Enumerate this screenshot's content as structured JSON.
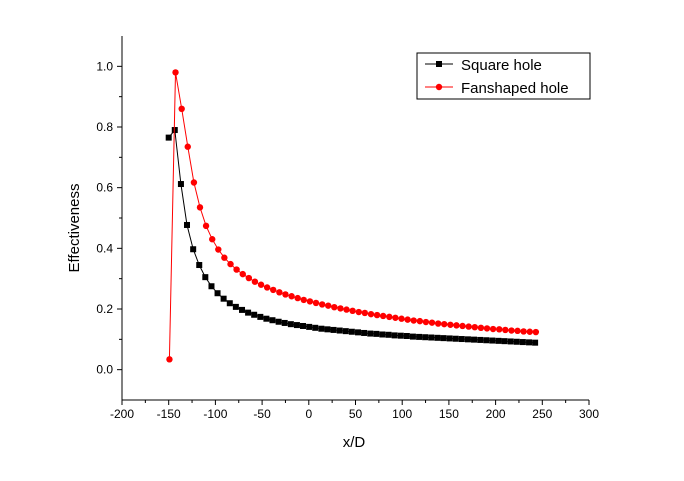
{
  "chart_data": {
    "type": "scatter",
    "xlabel": "x/D",
    "ylabel": "Effectiveness",
    "xlim": [
      -200,
      300
    ],
    "ylim": [
      -0.1,
      1.1
    ],
    "xticks": [
      -200,
      -150,
      -100,
      -50,
      0,
      50,
      100,
      150,
      200,
      250,
      300
    ],
    "yticks": [
      0.0,
      0.2,
      0.4,
      0.6,
      0.8,
      1.0
    ],
    "xtick_labels": [
      "-200",
      "-150",
      "-100",
      "-50",
      "0",
      "50",
      "100",
      "150",
      "200",
      "250",
      "300"
    ],
    "ytick_labels": [
      "0.0",
      "0.2",
      "0.4",
      "0.6",
      "0.8",
      "1.0"
    ],
    "grid": false,
    "legend_position": "top-right",
    "series": [
      {
        "name": "Square hole",
        "color": "#000000",
        "marker": "square",
        "x": [
          -150,
          -143.5,
          -136.9,
          -130.4,
          -123.8,
          -117.3,
          -110.8,
          -104.2,
          -97.7,
          -91.2,
          -84.6,
          -78.1,
          -71.5,
          -65,
          -58.5,
          -51.9,
          -45.4,
          -38.9,
          -32.3,
          -25.8,
          -19.2,
          -12.7,
          -6.2,
          0.4,
          6.9,
          13.5,
          20,
          26.5,
          33.1,
          39.6,
          46.1,
          52.7,
          59.2,
          65.8,
          72.3,
          78.8,
          85.4,
          91.9,
          98.5,
          105,
          111.5,
          118.1,
          124.6,
          131.1,
          137.7,
          144.2,
          150.8,
          157.3,
          163.8,
          170.4,
          176.9,
          183.5,
          190,
          196.5,
          203.1,
          209.6,
          216.2,
          222.7,
          229.2,
          235.8,
          242.3
        ],
        "y": [
          0.765,
          0.79,
          0.612,
          0.477,
          0.397,
          0.345,
          0.305,
          0.275,
          0.252,
          0.234,
          0.219,
          0.207,
          0.197,
          0.188,
          0.181,
          0.174,
          0.168,
          0.163,
          0.158,
          0.154,
          0.15,
          0.147,
          0.144,
          0.141,
          0.138,
          0.135,
          0.133,
          0.131,
          0.129,
          0.127,
          0.125,
          0.123,
          0.121,
          0.119,
          0.118,
          0.116,
          0.115,
          0.113,
          0.112,
          0.111,
          0.109,
          0.108,
          0.107,
          0.106,
          0.105,
          0.104,
          0.103,
          0.102,
          0.101,
          0.1,
          0.099,
          0.098,
          0.097,
          0.096,
          0.095,
          0.094,
          0.093,
          0.092,
          0.091,
          0.09,
          0.089
        ]
      },
      {
        "name": "Fanshaped hole",
        "color": "#ff0000",
        "marker": "circle",
        "x": [
          -149.2,
          -142.7,
          -136.1,
          -129.6,
          -123,
          -116.5,
          -110,
          -103.4,
          -96.9,
          -90.4,
          -83.8,
          -77.3,
          -70.7,
          -64.2,
          -57.7,
          -51.1,
          -44.6,
          -38.1,
          -31.5,
          -25,
          -18.4,
          -11.9,
          -5.4,
          1.2,
          7.7,
          14.3,
          20.8,
          27.3,
          33.9,
          40.4,
          46.9,
          53.5,
          60,
          66.6,
          73.1,
          79.6,
          86.2,
          92.7,
          99.3,
          105.8,
          112.3,
          118.9,
          125.4,
          131.9,
          138.5,
          145,
          151.6,
          158.1,
          164.6,
          171.2,
          177.7,
          184.3,
          190.8,
          197.3,
          203.9,
          210.4,
          217,
          223.5,
          230,
          236.6,
          243.1
        ],
        "y": [
          0.034,
          0.98,
          0.86,
          0.735,
          0.617,
          0.535,
          0.474,
          0.43,
          0.396,
          0.369,
          0.348,
          0.33,
          0.315,
          0.302,
          0.29,
          0.28,
          0.271,
          0.263,
          0.255,
          0.248,
          0.242,
          0.236,
          0.23,
          0.225,
          0.22,
          0.215,
          0.211,
          0.206,
          0.202,
          0.198,
          0.194,
          0.19,
          0.187,
          0.183,
          0.18,
          0.177,
          0.174,
          0.171,
          0.168,
          0.165,
          0.162,
          0.16,
          0.157,
          0.155,
          0.152,
          0.15,
          0.148,
          0.146,
          0.144,
          0.142,
          0.14,
          0.138,
          0.136,
          0.134,
          0.133,
          0.131,
          0.129,
          0.128,
          0.126,
          0.125,
          0.124
        ]
      }
    ]
  }
}
